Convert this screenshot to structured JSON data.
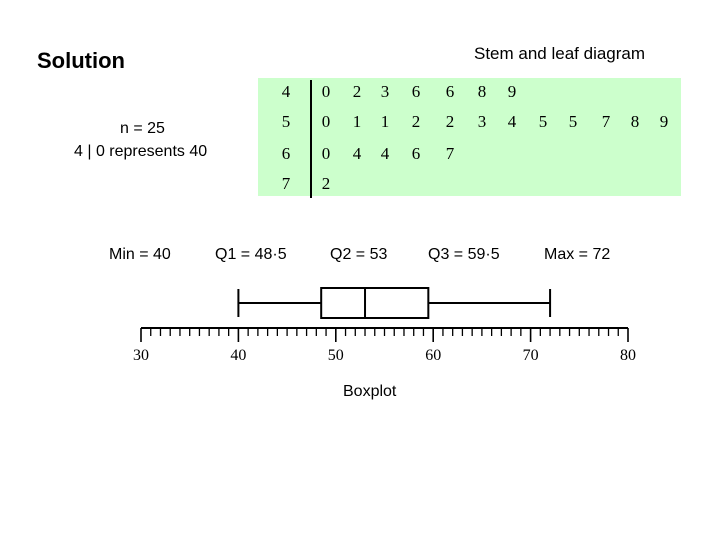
{
  "solution_heading": "Solution",
  "stem_leaf": {
    "title": "Stem and leaf diagram",
    "n_text": "n = 25",
    "key_text": "4 | 0   represents  40",
    "rows": [
      {
        "stem": "4",
        "leaves": [
          "0",
          "2",
          "3",
          "6",
          "6",
          "8",
          "9"
        ]
      },
      {
        "stem": "5",
        "leaves": [
          "0",
          "1",
          "1",
          "2",
          "2",
          "3",
          "4",
          "5",
          "5",
          "7",
          "8",
          "9"
        ]
      },
      {
        "stem": "6",
        "leaves": [
          "0",
          "4",
          "4",
          "6",
          "7"
        ]
      },
      {
        "stem": "7",
        "leaves": [
          "2"
        ]
      }
    ],
    "background_color": "#ccffcc"
  },
  "summary": {
    "min": "Min  =  40",
    "q1": "Q1  =  48·5",
    "q2": "Q2  =  53",
    "q3": "Q3  =  59·5",
    "max": "Max  =  72"
  },
  "boxplot": {
    "title": "Boxplot",
    "min": 40,
    "q1": 48.5,
    "median": 53,
    "q3": 59.5,
    "max": 72,
    "axis_min": 30,
    "axis_max": 80,
    "major_step": 10,
    "minor_step": 1,
    "tick_labels": [
      "30",
      "40",
      "50",
      "60",
      "70",
      "80"
    ]
  },
  "chart_data": {
    "type": "boxplot",
    "title": "Boxplot",
    "values": {
      "min": 40,
      "q1": 48.5,
      "median": 53,
      "q3": 59.5,
      "max": 72
    },
    "xlim": [
      30,
      80
    ],
    "x_ticks": [
      30,
      40,
      50,
      60,
      70,
      80
    ]
  }
}
